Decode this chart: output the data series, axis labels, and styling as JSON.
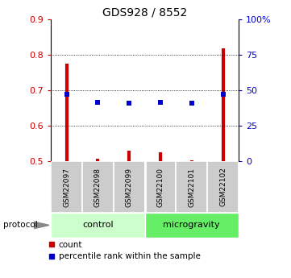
{
  "title": "GDS928 / 8552",
  "samples": [
    "GSM22097",
    "GSM22098",
    "GSM22099",
    "GSM22100",
    "GSM22101",
    "GSM22102"
  ],
  "group_colors": {
    "control": "#ccffcc",
    "microgravity": "#66ee66"
  },
  "red_values": [
    0.775,
    0.508,
    0.53,
    0.525,
    0.502,
    0.818
  ],
  "blue_values": [
    0.688,
    0.667,
    0.665,
    0.667,
    0.664,
    0.69
  ],
  "ylim_left": [
    0.5,
    0.9
  ],
  "ylim_right": [
    0,
    100
  ],
  "yticks_left": [
    0.5,
    0.6,
    0.7,
    0.8,
    0.9
  ],
  "yticks_right": [
    0,
    25,
    50,
    75,
    100
  ],
  "ytick_labels_right": [
    "0",
    "25",
    "50",
    "75",
    "100%"
  ],
  "red_color": "#cc0000",
  "blue_color": "#0000cc",
  "label_count": "count",
  "label_percentile": "percentile rank within the sample",
  "protocol_label": "protocol"
}
